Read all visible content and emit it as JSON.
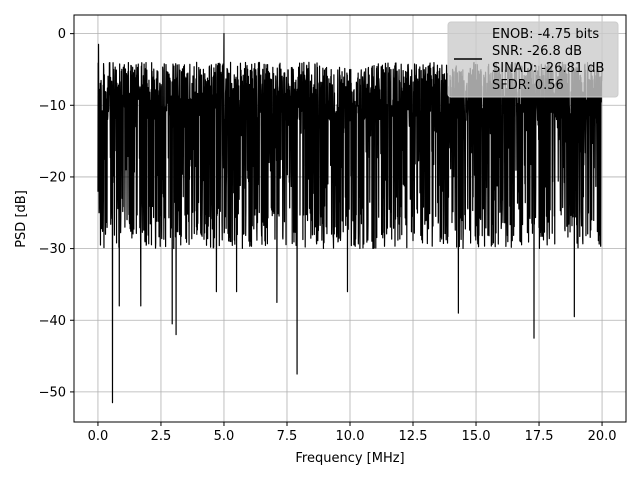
{
  "chart_data": {
    "type": "line",
    "title": "",
    "xlabel": "Frequency [MHz]",
    "ylabel": "PSD [dB]",
    "xlim": [
      -0.95,
      20.95
    ],
    "ylim": [
      -54.2,
      2.6
    ],
    "x_ticks": [
      0.0,
      2.5,
      5.0,
      7.5,
      10.0,
      12.5,
      15.0,
      17.5,
      20.0
    ],
    "x_tick_labels": [
      "0.0",
      "2.5",
      "5.0",
      "7.5",
      "10.0",
      "12.5",
      "15.0",
      "17.5",
      "20.0"
    ],
    "y_ticks": [
      0,
      -10,
      -20,
      -30,
      -40,
      -50
    ],
    "y_tick_labels": [
      "0",
      "−10",
      "−20",
      "−30",
      "−40",
      "−50"
    ],
    "grid": true,
    "legend_position": "top-right",
    "legend_lines": [
      "ENOB: -4.75 bits",
      "SNR: -26.8 dB",
      "SINAD: -26.81 dB",
      "SFDR: 0.56"
    ],
    "series": [
      {
        "color": "#000000",
        "x_range": [
          0.0,
          20.0
        ],
        "typical_range": [
          -30,
          -4
        ],
        "marked_points": [
          {
            "x": 0.02,
            "y": -1.5
          },
          {
            "x": 0.04,
            "y": -14
          },
          {
            "x": 0.1,
            "y": -29.5
          },
          {
            "x": 0.3,
            "y": -28
          },
          {
            "x": 0.58,
            "y": -51.5
          },
          {
            "x": 0.85,
            "y": -38
          },
          {
            "x": 1.7,
            "y": -38
          },
          {
            "x": 2.95,
            "y": -40.5
          },
          {
            "x": 3.1,
            "y": -42
          },
          {
            "x": 4.7,
            "y": -36
          },
          {
            "x": 5.0,
            "y": 0.0
          },
          {
            "x": 5.5,
            "y": -36
          },
          {
            "x": 7.1,
            "y": -37.5
          },
          {
            "x": 7.9,
            "y": -47.5
          },
          {
            "x": 9.9,
            "y": -36
          },
          {
            "x": 14.3,
            "y": -39
          },
          {
            "x": 17.3,
            "y": -42.5
          },
          {
            "x": 18.9,
            "y": -39.5
          },
          {
            "x": 20.0,
            "y": -4
          }
        ]
      }
    ]
  }
}
